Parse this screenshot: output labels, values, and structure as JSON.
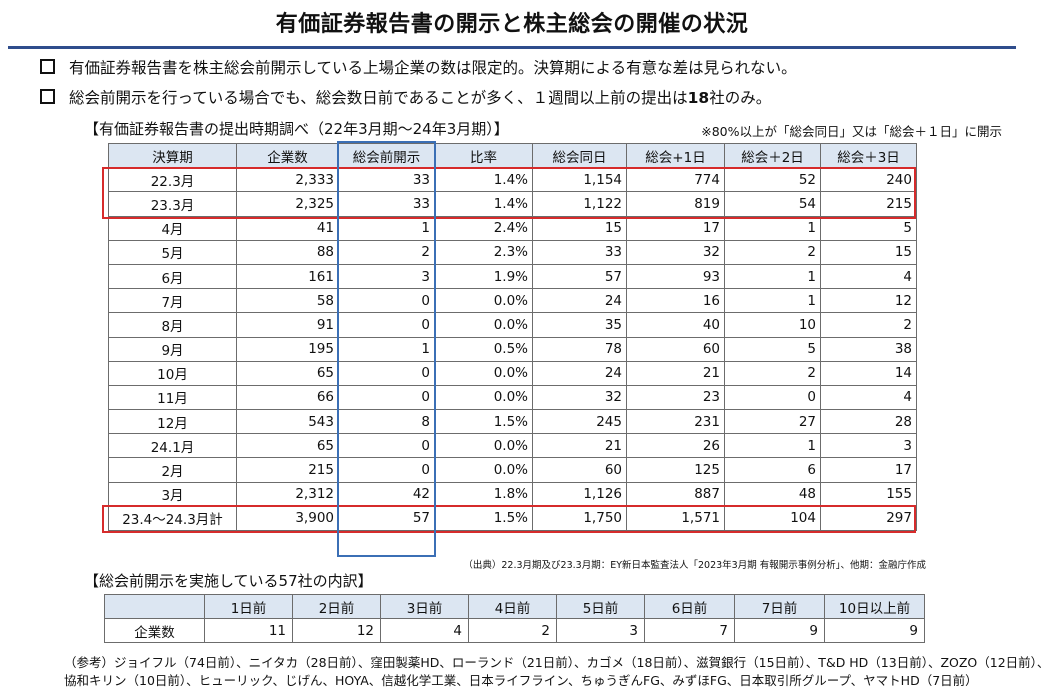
{
  "title": "有価証券報告書の開示と株主総会の開催の状況",
  "bullets": [
    {
      "text": "有価証券報告書を株主総会前開示している上場企業の数は限定的。決算期による有意な差は見られない。"
    },
    {
      "pre": "総会前開示を行っている場合でも、総会数日前であることが多く、１週間以上前の提出は",
      "bold": "18",
      "post": "社のみ。"
    }
  ],
  "main_section": {
    "title": "【有価証券報告書の提出時期調べ（22年3月期〜24年3月期）】",
    "note": "※80%以上が「総会同日」又は「総会＋１日」に開示",
    "headers": [
      "決算期",
      "企業数",
      "総会前開示",
      "比率",
      "総会同日",
      "総会+1日",
      "総会＋2日",
      "総会＋3日"
    ],
    "rows": [
      [
        "22.3月",
        "2,333",
        "33",
        "1.4%",
        "1,154",
        "774",
        "52",
        "240"
      ],
      [
        "23.3月",
        "2,325",
        "33",
        "1.4%",
        "1,122",
        "819",
        "54",
        "215"
      ],
      [
        "4月",
        "41",
        "1",
        "2.4%",
        "15",
        "17",
        "1",
        "5"
      ],
      [
        "5月",
        "88",
        "2",
        "2.3%",
        "33",
        "32",
        "2",
        "15"
      ],
      [
        "6月",
        "161",
        "3",
        "1.9%",
        "57",
        "93",
        "1",
        "4"
      ],
      [
        "7月",
        "58",
        "0",
        "0.0%",
        "24",
        "16",
        "1",
        "12"
      ],
      [
        "8月",
        "91",
        "0",
        "0.0%",
        "35",
        "40",
        "10",
        "2"
      ],
      [
        "9月",
        "195",
        "1",
        "0.5%",
        "78",
        "60",
        "5",
        "38"
      ],
      [
        "10月",
        "65",
        "0",
        "0.0%",
        "24",
        "21",
        "2",
        "14"
      ],
      [
        "11月",
        "66",
        "0",
        "0.0%",
        "32",
        "23",
        "0",
        "4"
      ],
      [
        "12月",
        "543",
        "8",
        "1.5%",
        "245",
        "231",
        "27",
        "28"
      ],
      [
        "24.1月",
        "65",
        "0",
        "0.0%",
        "21",
        "26",
        "1",
        "3"
      ],
      [
        "2月",
        "215",
        "0",
        "0.0%",
        "60",
        "125",
        "6",
        "17"
      ],
      [
        "3月",
        "2,312",
        "42",
        "1.8%",
        "1,126",
        "887",
        "48",
        "155"
      ],
      [
        "23.4〜24.3月計",
        "3,900",
        "57",
        "1.5%",
        "1,750",
        "1,571",
        "104",
        "297"
      ]
    ],
    "source": "（出典）22.3月期及び23.3月期：EY新日本監査法人「2023年3月期 有報開示事例分析」、他期：金融庁作成"
  },
  "breakdown_section": {
    "title": "【総会前開示を実施している57社の内訳】",
    "headers": [
      "",
      "1日前",
      "2日前",
      "3日前",
      "4日前",
      "5日前",
      "6日前",
      "7日前",
      "10日以上前"
    ],
    "row": [
      "企業数",
      "11",
      "12",
      "4",
      "2",
      "3",
      "7",
      "9",
      "9"
    ]
  },
  "reference": {
    "line1": "（参考）ジョイフル（74日前）、ニイタカ（28日前）、窪田製薬HD、ローランド（21日前）、カゴメ（18日前）、滋賀銀行（15日前）、T&D HD（13日前）、ZOZO（12日前）、",
    "line2": "協和キリン（10日前）、ヒューリック、じげん、HOYA、信越化学工業、日本ライフライン、ちゅうぎんFG、みずほFG、日本取引所グループ、ヤマトHD（7日前）"
  },
  "colors": {
    "title_rule": "#2f4d8c",
    "header_fill": "#dce6f2",
    "highlight_red": "#d62b2b",
    "highlight_blue": "#3b6fb5"
  }
}
